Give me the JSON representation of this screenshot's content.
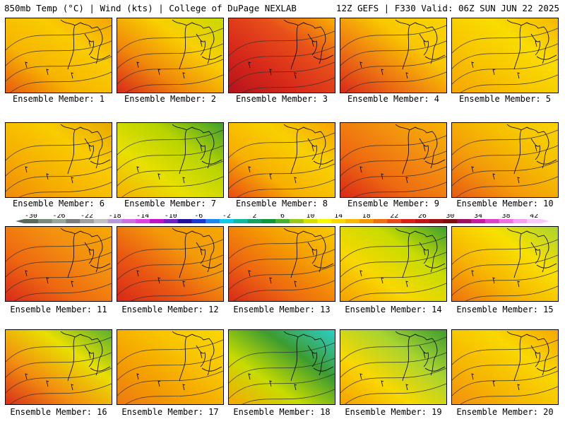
{
  "header": {
    "left": "850mb Temp (°C) | Wind (kts) | College of DuPage NEXLAB",
    "right": "12Z GEFS | F330 Valid: 06Z SUN JUN 22 2025"
  },
  "members": [
    {
      "label": "Ensemble Member: 1",
      "colors": [
        "#e85a10",
        "#f7b400",
        "#f9cc00",
        "#f5a500"
      ]
    },
    {
      "label": "Ensemble Member: 2",
      "colors": [
        "#d8281a",
        "#f08a0a",
        "#f9d000",
        "#c8d800"
      ]
    },
    {
      "label": "Ensemble Member: 3",
      "colors": [
        "#b4121c",
        "#d82a1a",
        "#e8501a",
        "#f8b000"
      ]
    },
    {
      "label": "Ensemble Member: 4",
      "colors": [
        "#d8281a",
        "#ee7812",
        "#f9c800",
        "#f8d400"
      ]
    },
    {
      "label": "Ensemble Member: 5",
      "colors": [
        "#f5a500",
        "#f8c400",
        "#f9dc00",
        "#f6b800"
      ]
    },
    {
      "label": "Ensemble Member: 6",
      "colors": [
        "#f08a0a",
        "#f6b000",
        "#f9cc00",
        "#e8a800"
      ]
    },
    {
      "label": "Ensemble Member: 7",
      "colors": [
        "#f6b000",
        "#e8e000",
        "#b8d400",
        "#3ca030"
      ]
    },
    {
      "label": "Ensemble Member: 8",
      "colors": [
        "#e84a14",
        "#f7b000",
        "#f8d000",
        "#f5a500"
      ]
    },
    {
      "label": "Ensemble Member: 9",
      "colors": [
        "#d82818",
        "#ee6a10",
        "#f39010",
        "#f6b400"
      ]
    },
    {
      "label": "Ensemble Member: 10",
      "colors": [
        "#e85a12",
        "#f39a0a",
        "#f6c000",
        "#f8d400"
      ]
    },
    {
      "label": "Ensemble Member: 11",
      "colors": [
        "#d82a1a",
        "#ee6810",
        "#f39010",
        "#f5a800"
      ]
    },
    {
      "label": "Ensemble Member: 12",
      "colors": [
        "#d82818",
        "#ea5812",
        "#f39a0a",
        "#f4a800"
      ]
    },
    {
      "label": "Ensemble Member: 13",
      "colors": [
        "#d82a1a",
        "#ee6a10",
        "#f5a000",
        "#f8cc00"
      ]
    },
    {
      "label": "Ensemble Member: 14",
      "colors": [
        "#f4a000",
        "#f8d800",
        "#c8dc00",
        "#3ca030"
      ]
    },
    {
      "label": "Ensemble Member: 15",
      "colors": [
        "#ee7210",
        "#f6b400",
        "#f9e000",
        "#a8d430"
      ]
    },
    {
      "label": "Ensemble Member: 16",
      "colors": [
        "#d83018",
        "#f39010",
        "#e8e000",
        "#58b030"
      ]
    },
    {
      "label": "Ensemble Member: 17",
      "colors": [
        "#ee7812",
        "#f4a000",
        "#f8c400",
        "#f9d800"
      ]
    },
    {
      "label": "Ensemble Member: 18",
      "colors": [
        "#f6a800",
        "#c8dc00",
        "#3c9c30",
        "#2ccfc8"
      ]
    },
    {
      "label": "Ensemble Member: 19",
      "colors": [
        "#f4a000",
        "#f9d800",
        "#a8d430",
        "#3c9c30"
      ]
    },
    {
      "label": "Ensemble Member: 20",
      "colors": [
        "#f39010",
        "#f6b800",
        "#f9d800",
        "#f5a800"
      ]
    }
  ],
  "colorbar": {
    "labels": [
      "-30",
      "-26",
      "-22",
      "-18",
      "-14",
      "-10",
      "-6",
      "-2",
      "2",
      "6",
      "10",
      "14",
      "18",
      "22",
      "26",
      "30",
      "34",
      "38",
      "42"
    ],
    "colors": [
      "#5a6a5a",
      "#788a78",
      "#98a898",
      "#7c7c7c",
      "#a0a0a0",
      "#c0c0c0",
      "#b898d8",
      "#d070e0",
      "#e040e0",
      "#c010c8",
      "#7020c0",
      "#2010a0",
      "#1838d0",
      "#1888f0",
      "#10c8e8",
      "#10b8a0",
      "#18a060",
      "#109838",
      "#48b030",
      "#98c818",
      "#d8e000",
      "#f8f800",
      "#f8d800",
      "#f8b800",
      "#f89800",
      "#f07010",
      "#e84818",
      "#d82018",
      "#c01418",
      "#a01010",
      "#800c10",
      "#a00c60",
      "#c818a0",
      "#e040c8",
      "#f070e0",
      "#f8a0f0",
      "#f8c8f8"
    ]
  }
}
